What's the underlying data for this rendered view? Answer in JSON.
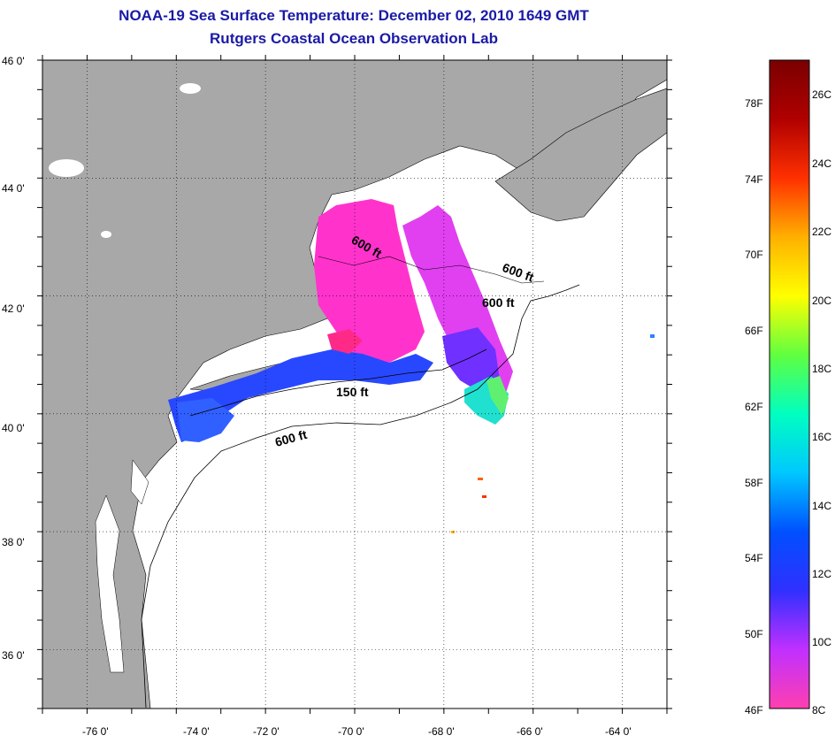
{
  "title": {
    "line1": "NOAA-19 Sea Surface Temperature:  December 02, 2010 1649 GMT",
    "line2": "Rutgers Coastal Ocean Observation Lab"
  },
  "map": {
    "lon_labels": [
      "-76 0'",
      "-74 0'",
      "-72 0'",
      "-70 0'",
      "-68 0'",
      "-66 0'",
      "-64 0'"
    ],
    "lat_labels": [
      "46 0'",
      "44 0'",
      "42 0'",
      "40 0'",
      "38 0'",
      "36 0'"
    ],
    "lon_range": [
      -77.0,
      -63.0
    ],
    "lat_range": [
      35.0,
      46.0
    ],
    "isobath_labels": [
      "600 ft",
      "600 ft",
      "600 ft",
      "150 ft",
      "600 ft"
    ],
    "colors": {
      "land": "#a8a8a8",
      "ocean": "#ffffff",
      "grid": "#000000"
    }
  },
  "colorbar": {
    "fahrenheit_labels": [
      "78F",
      "74F",
      "70F",
      "66F",
      "62F",
      "58F",
      "54F",
      "50F",
      "46F"
    ],
    "celsius_labels": [
      "26C",
      "24C",
      "22C",
      "20C",
      "18C",
      "16C",
      "14C",
      "12C",
      "10C",
      "8C"
    ],
    "range_c": [
      8,
      27
    ],
    "colors": [
      "#ff3fb0",
      "#c030ff",
      "#3030ff",
      "#0050ff",
      "#00c8ff",
      "#00ffc0",
      "#60ff40",
      "#ffff00",
      "#ffb000",
      "#ff3000",
      "#b00000",
      "#7a0000"
    ]
  }
}
